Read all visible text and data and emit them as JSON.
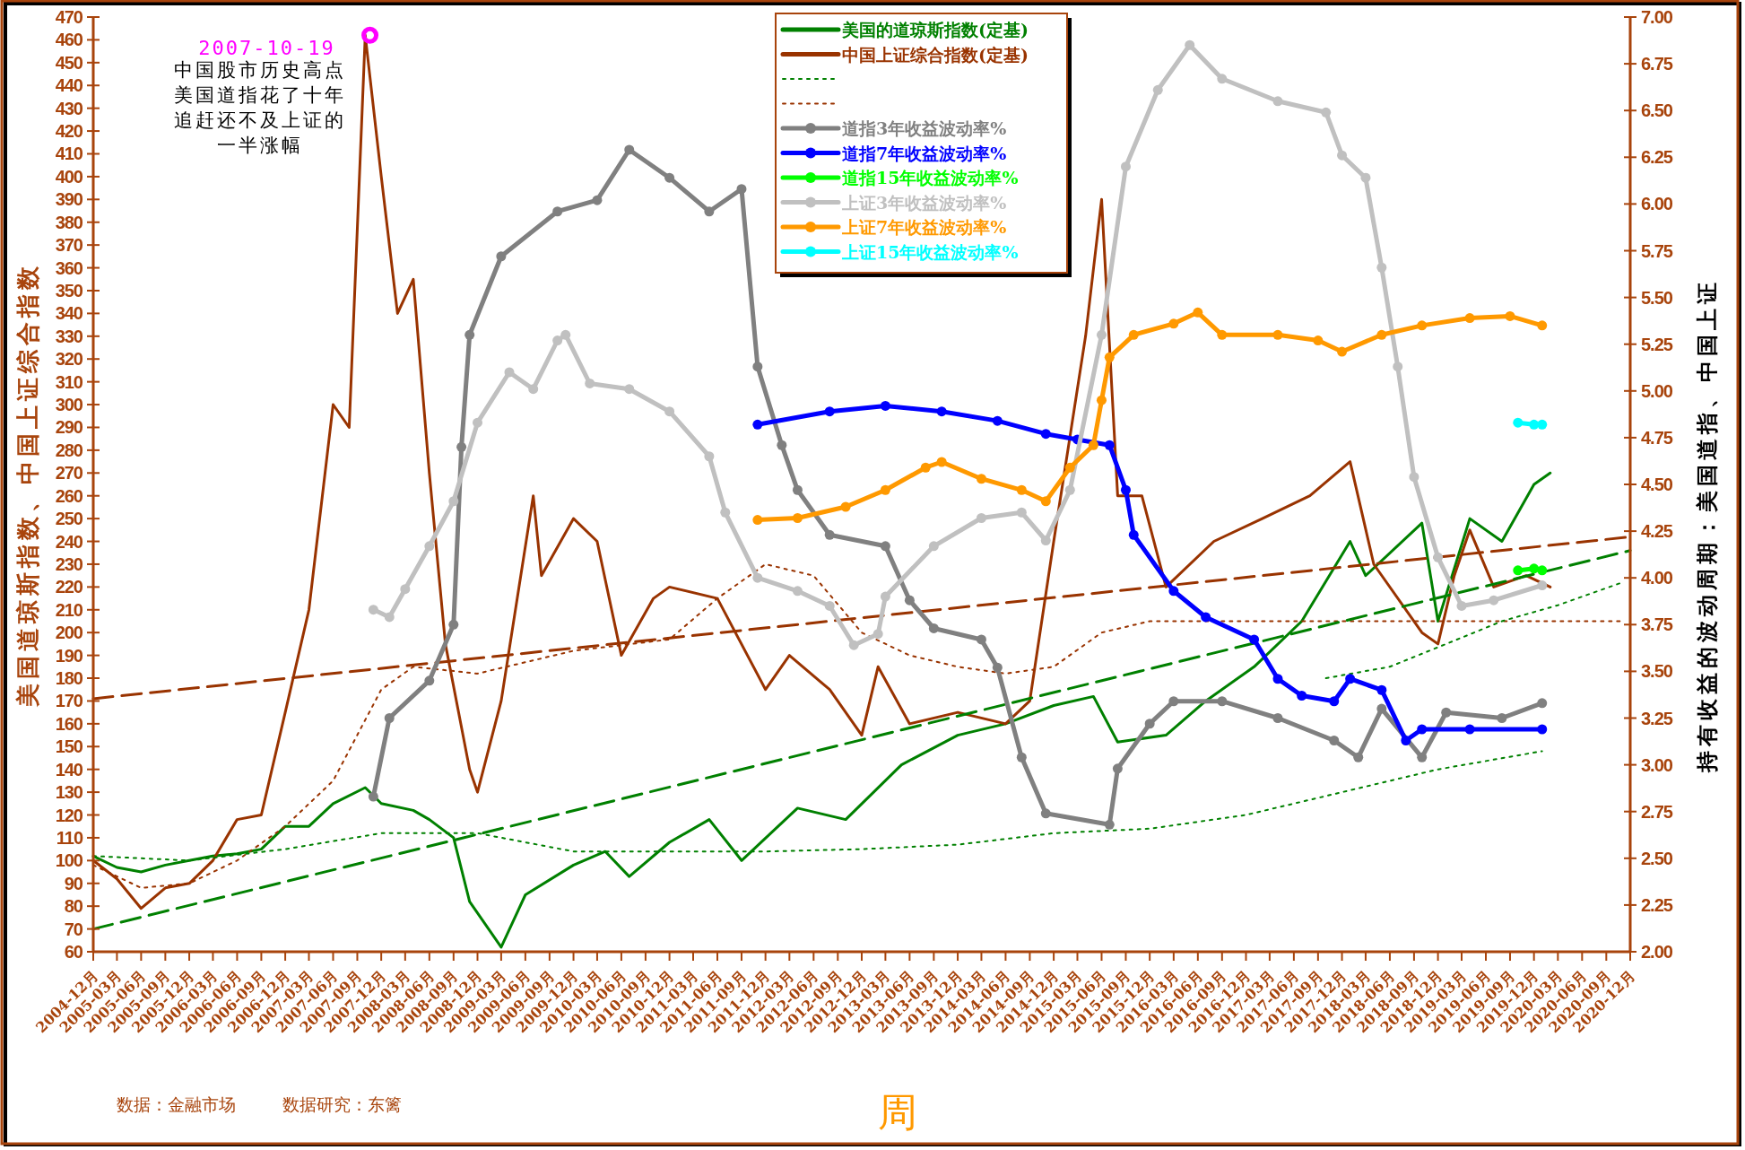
{
  "chart_data": {
    "type": "line",
    "xlabel": "周",
    "ylabel": "美国道琼斯指数、中国上证综合指数",
    "y2label": "持有收益的波动周期：美国道指、中国上证",
    "grid": false,
    "legend": "top",
    "marker": "none",
    "line_style": "solid",
    "xlim": [
      "2004-12",
      "2020-12"
    ],
    "xticks": [
      {
        "value": "2004-12",
        "label": "2004-12月"
      },
      {
        "value": "2005-03",
        "label": "2005-03月"
      },
      {
        "value": "2005-06",
        "label": "2005-06月"
      },
      {
        "value": "2005-09",
        "label": "2005-09月"
      },
      {
        "value": "2005-12",
        "label": "2005-12月"
      },
      {
        "value": "2006-03",
        "label": "2006-03月"
      },
      {
        "value": "2006-06",
        "label": "2006-06月"
      },
      {
        "value": "2006-09",
        "label": "2006-09月"
      },
      {
        "value": "2006-12",
        "label": "2006-12月"
      },
      {
        "value": "2007-03",
        "label": "2007-03月"
      },
      {
        "value": "2007-06",
        "label": "2007-06月"
      },
      {
        "value": "2007-09",
        "label": "2007-09月"
      },
      {
        "value": "2007-12",
        "label": "2007-12月"
      },
      {
        "value": "2008-03",
        "label": "2008-03月"
      },
      {
        "value": "2008-06",
        "label": "2008-06月"
      },
      {
        "value": "2008-09",
        "label": "2008-09月"
      },
      {
        "value": "2008-12",
        "label": "2008-12月"
      },
      {
        "value": "2009-03",
        "label": "2009-03月"
      },
      {
        "value": "2009-06",
        "label": "2009-06月"
      },
      {
        "value": "2009-09",
        "label": "2009-09月"
      },
      {
        "value": "2009-12",
        "label": "2009-12月"
      },
      {
        "value": "2010-03",
        "label": "2010-03月"
      },
      {
        "value": "2010-06",
        "label": "2010-06月"
      },
      {
        "value": "2010-09",
        "label": "2010-09月"
      },
      {
        "value": "2010-12",
        "label": "2010-12月"
      },
      {
        "value": "2011-03",
        "label": "2011-03月"
      },
      {
        "value": "2011-06",
        "label": "2011-06月"
      },
      {
        "value": "2011-09",
        "label": "2011-09月"
      },
      {
        "value": "2011-12",
        "label": "2011-12月"
      },
      {
        "value": "2012-03",
        "label": "2012-03月"
      },
      {
        "value": "2012-06",
        "label": "2012-06月"
      },
      {
        "value": "2012-09",
        "label": "2012-09月"
      },
      {
        "value": "2012-12",
        "label": "2012-12月"
      },
      {
        "value": "2013-03",
        "label": "2013-03月"
      },
      {
        "value": "2013-06",
        "label": "2013-06月"
      },
      {
        "value": "2013-09",
        "label": "2013-09月"
      },
      {
        "value": "2013-12",
        "label": "2013-12月"
      },
      {
        "value": "2014-03",
        "label": "2014-03月"
      },
      {
        "value": "2014-06",
        "label": "2014-06月"
      },
      {
        "value": "2014-09",
        "label": "2014-09月"
      },
      {
        "value": "2014-12",
        "label": "2014-12月"
      },
      {
        "value": "2015-03",
        "label": "2015-03月"
      },
      {
        "value": "2015-06",
        "label": "2015-06月"
      },
      {
        "value": "2015-09",
        "label": "2015-09月"
      },
      {
        "value": "2015-12",
        "label": "2015-12月"
      },
      {
        "value": "2016-03",
        "label": "2016-03月"
      },
      {
        "value": "2016-06",
        "label": "2016-06月"
      },
      {
        "value": "2016-09",
        "label": "2016-09月"
      },
      {
        "value": "2016-12",
        "label": "2016-12月"
      },
      {
        "value": "2017-03",
        "label": "2017-03月"
      },
      {
        "value": "2017-06",
        "label": "2017-06月"
      },
      {
        "value": "2017-09",
        "label": "2017-09月"
      },
      {
        "value": "2017-12",
        "label": "2017-12月"
      },
      {
        "value": "2018-03",
        "label": "2018-03月"
      },
      {
        "value": "2018-06",
        "label": "2018-06月"
      },
      {
        "value": "2018-09",
        "label": "2018-09月"
      },
      {
        "value": "2018-12",
        "label": "2018-12月"
      },
      {
        "value": "2019-03",
        "label": "2019-03月"
      },
      {
        "value": "2019-06",
        "label": "2019-06月"
      },
      {
        "value": "2019-09",
        "label": "2019-09月"
      },
      {
        "value": "2019-12",
        "label": "2019-12月"
      },
      {
        "value": "2020-03",
        "label": "2020-03月"
      },
      {
        "value": "2020-06",
        "label": "2020-06月"
      },
      {
        "value": "2020-09",
        "label": "2020-09月"
      },
      {
        "value": "2020-12",
        "label": "2020-12月"
      }
    ],
    "ylim": [
      60,
      470
    ],
    "yticks": [
      60,
      70,
      80,
      90,
      100,
      110,
      120,
      130,
      140,
      150,
      160,
      170,
      180,
      190,
      200,
      210,
      220,
      230,
      240,
      250,
      260,
      270,
      280,
      290,
      300,
      310,
      320,
      330,
      340,
      350,
      360,
      370,
      380,
      390,
      400,
      410,
      420,
      430,
      440,
      450,
      460,
      470
    ],
    "y2lim": [
      2,
      7
    ],
    "y2ticks": [
      {
        "value": 2,
        "label": "2.00"
      },
      {
        "value": 2.25,
        "label": "2.25"
      },
      {
        "value": 2.5,
        "label": "2.50"
      },
      {
        "value": 2.75,
        "label": "2.75"
      },
      {
        "value": 3,
        "label": "3.00"
      },
      {
        "value": 3.25,
        "label": "3.25"
      },
      {
        "value": 3.5,
        "label": "3.50"
      },
      {
        "value": 3.75,
        "label": "3.75"
      },
      {
        "value": 4,
        "label": "4.00"
      },
      {
        "value": 4.25,
        "label": "4.25"
      },
      {
        "value": 4.5,
        "label": "4.50"
      },
      {
        "value": 4.75,
        "label": "4.75"
      },
      {
        "value": 5,
        "label": "5.00"
      },
      {
        "value": 5.25,
        "label": "5.25"
      },
      {
        "value": 5.5,
        "label": "5.50"
      },
      {
        "value": 5.75,
        "label": "5.75"
      },
      {
        "value": 6,
        "label": "6.00"
      },
      {
        "value": 6.25,
        "label": "6.25"
      },
      {
        "value": 6.5,
        "label": "6.50"
      },
      {
        "value": 6.75,
        "label": "6.75"
      },
      {
        "value": 7,
        "label": "7.00"
      }
    ],
    "annotations": [
      {
        "text": "2007-10-19",
        "x": "2007-10-19",
        "y": 462
      },
      "中国股市历史高点美国道指花了十年追赶还不及上证的一半涨幅",
      "数据：金融市场",
      "数据研究：东篱"
    ],
    "series": [
      {
        "name": "美国的道琼斯指数(定基)",
        "color": "#008000",
        "x": [
          "2004-12",
          "2005-03",
          "2005-06",
          "2005-09",
          "2005-12",
          "2006-03",
          "2006-06",
          "2006-09",
          "2006-12",
          "2007-03",
          "2007-06",
          "2007-10",
          "2007-12",
          "2008-04",
          "2008-06",
          "2008-09",
          "2008-11",
          "2009-03",
          "2009-06",
          "2009-12",
          "2010-04",
          "2010-07",
          "2010-12",
          "2011-05",
          "2011-09",
          "2012-04",
          "2012-10",
          "2013-05",
          "2013-12",
          "2014-06",
          "2014-12",
          "2015-05",
          "2015-08",
          "2016-02",
          "2016-07",
          "2017-01",
          "2017-07",
          "2018-01",
          "2018-03",
          "2018-10",
          "2018-12",
          "2019-04",
          "2019-08",
          "2019-12",
          "2020-02"
        ],
        "values": [
          102,
          97,
          95,
          98,
          100,
          102,
          103,
          105,
          115,
          115,
          125,
          132,
          125,
          122,
          118,
          110,
          82,
          62,
          85,
          98,
          104,
          93,
          108,
          118,
          100,
          123,
          118,
          142,
          155,
          160,
          168,
          172,
          152,
          155,
          170,
          185,
          205,
          240,
          225,
          248,
          205,
          250,
          240,
          265,
          270
        ]
      },
      {
        "name": "中国上证综合指数(定基)",
        "color": "#993300",
        "x": [
          "2004-12",
          "2005-03",
          "2005-06",
          "2005-09",
          "2005-12",
          "2006-03",
          "2006-06",
          "2006-09",
          "2006-12",
          "2007-03",
          "2007-06",
          "2007-08",
          "2007-10",
          "2007-12",
          "2008-02",
          "2008-04",
          "2008-06",
          "2008-08",
          "2008-11",
          "2008-12",
          "2009-03",
          "2009-07",
          "2009-08",
          "2009-12",
          "2010-03",
          "2010-06",
          "2010-10",
          "2010-12",
          "2011-06",
          "2011-12",
          "2012-03",
          "2012-08",
          "2012-12",
          "2013-02",
          "2013-06",
          "2013-12",
          "2014-06",
          "2014-09",
          "2014-12",
          "2015-04",
          "2015-06",
          "2015-08",
          "2015-11",
          "2016-02",
          "2016-08",
          "2017-02",
          "2017-08",
          "2018-01",
          "2018-04",
          "2018-10",
          "2018-12",
          "2019-02",
          "2019-04",
          "2019-07",
          "2019-11",
          "2020-02"
        ],
        "values": [
          100,
          92,
          79,
          88,
          90,
          100,
          118,
          120,
          165,
          210,
          300,
          290,
          462,
          400,
          340,
          355,
          270,
          195,
          140,
          130,
          170,
          260,
          225,
          250,
          240,
          190,
          215,
          220,
          215,
          175,
          190,
          175,
          155,
          185,
          160,
          165,
          160,
          170,
          240,
          330,
          390,
          260,
          260,
          220,
          240,
          250,
          260,
          275,
          230,
          200,
          195,
          225,
          245,
          220,
          225,
          220
        ]
      },
      {
        "color": "#008000",
        "line_style": "dotted",
        "x": [
          "2004-12",
          "2005-12",
          "2006-12",
          "2007-12",
          "2008-12",
          "2009-06",
          "2009-12",
          "2010-12",
          "2011-12",
          "2012-12",
          "2013-12",
          "2014-12",
          "2015-12",
          "2016-12",
          "2017-12",
          "2018-12",
          "2020-01"
        ],
        "values": [
          102,
          100,
          105,
          112,
          112,
          108,
          104,
          104,
          104,
          105,
          107,
          112,
          114,
          120,
          130,
          140,
          148
        ]
      },
      {
        "color": "#993300",
        "line_style": "dotted",
        "x": [
          "2004-12",
          "2005-06",
          "2005-12",
          "2006-06",
          "2006-12",
          "2007-06",
          "2007-12",
          "2008-04",
          "2008-12",
          "2009-12",
          "2010-12",
          "2011-06",
          "2011-12",
          "2012-06",
          "2012-12",
          "2013-06",
          "2013-12",
          "2014-06",
          "2014-12",
          "2015-06",
          "2015-12",
          "2017-06",
          "2019-02",
          "2020-11"
        ],
        "values": [
          98,
          88,
          90,
          100,
          115,
          135,
          175,
          185,
          182,
          192,
          197,
          215,
          230,
          225,
          200,
          190,
          185,
          182,
          185,
          200,
          205,
          205,
          205,
          205
        ]
      },
      {
        "color": "#008000",
        "line_style": "dotted",
        "x": [
          "2017-10",
          "2018-06",
          "2019-01",
          "2019-08",
          "2020-03",
          "2020-11"
        ],
        "values": [
          180,
          185,
          195,
          205,
          212,
          222
        ]
      },
      {
        "color": "#008000",
        "line_style": "dashed",
        "x": [
          "2004-12",
          "2020-12"
        ],
        "values": [
          70,
          236
        ]
      },
      {
        "color": "#993300",
        "line_style": "dashed",
        "x": [
          "2004-12",
          "2020-12"
        ],
        "values": [
          171,
          242
        ]
      },
      {
        "name": "道指3年收益波动率%",
        "color": "#808080",
        "axis": "y2",
        "marker": "circle",
        "x": [
          "2007-11",
          "2008-01",
          "2008-06",
          "2008-09",
          "2008-10",
          "2008-11",
          "2009-03",
          "2009-10",
          "2010-03",
          "2010-07",
          "2010-12",
          "2011-05",
          "2011-09",
          "2011-11",
          "2012-02",
          "2012-04",
          "2012-08",
          "2013-03",
          "2013-06",
          "2013-09",
          "2014-03",
          "2014-05",
          "2014-08",
          "2014-11",
          "2015-07",
          "2015-08",
          "2015-12",
          "2016-03",
          "2016-09",
          "2017-04",
          "2017-11",
          "2018-02",
          "2018-05",
          "2018-10",
          "2019-01",
          "2019-08",
          "2020-01"
        ],
        "values": [
          2.83,
          3.25,
          3.45,
          3.75,
          4.7,
          5.3,
          5.72,
          5.96,
          6.02,
          6.29,
          6.14,
          5.96,
          6.08,
          5.13,
          4.71,
          4.47,
          4.23,
          4.17,
          3.88,
          3.73,
          3.67,
          3.52,
          3.04,
          2.74,
          2.68,
          2.98,
          3.22,
          3.34,
          3.34,
          3.25,
          3.13,
          3.04,
          3.3,
          3.04,
          3.28,
          3.25,
          3.33
        ]
      },
      {
        "name": "道指7年收益波动率%",
        "color": "#0000ff",
        "axis": "y2",
        "marker": "circle",
        "x": [
          "2011-11",
          "2012-08",
          "2013-03",
          "2013-10",
          "2014-05",
          "2014-11",
          "2015-03",
          "2015-07",
          "2015-09",
          "2015-10",
          "2016-03",
          "2016-07",
          "2017-01",
          "2017-04",
          "2017-07",
          "2017-11",
          "2018-01",
          "2018-05",
          "2018-08",
          "2018-10",
          "2019-04",
          "2020-01"
        ],
        "values": [
          4.82,
          4.89,
          4.92,
          4.89,
          4.84,
          4.77,
          4.74,
          4.71,
          4.47,
          4.23,
          3.93,
          3.79,
          3.67,
          3.46,
          3.37,
          3.34,
          3.46,
          3.4,
          3.13,
          3.19,
          3.19,
          3.19
        ]
      },
      {
        "name": "道指15年收益波动率%",
        "color": "#00ff00",
        "axis": "y2",
        "marker": "circle",
        "x": [
          "2019-10",
          "2019-12",
          "2020-01"
        ],
        "values": [
          4.04,
          4.05,
          4.04
        ]
      },
      {
        "name": "上证3年收益波动率%",
        "color": "#c0c0c0",
        "axis": "y2",
        "marker": "circle",
        "x": [
          "2007-11",
          "2008-01",
          "2008-03",
          "2008-06",
          "2008-09",
          "2008-12",
          "2009-04",
          "2009-07",
          "2009-10",
          "2009-11",
          "2010-02",
          "2010-07",
          "2010-12",
          "2011-05",
          "2011-07",
          "2011-11",
          "2012-04",
          "2012-08",
          "2012-11",
          "2013-02",
          "2013-03",
          "2013-09",
          "2014-03",
          "2014-08",
          "2014-11",
          "2015-02",
          "2015-06",
          "2015-09",
          "2016-01",
          "2016-05",
          "2016-09",
          "2017-04",
          "2017-10",
          "2017-12",
          "2018-03",
          "2018-05",
          "2018-07",
          "2018-09",
          "2018-12",
          "2019-03",
          "2019-07",
          "2020-01"
        ],
        "values": [
          3.83,
          3.79,
          3.94,
          4.17,
          4.41,
          4.83,
          5.1,
          5.01,
          5.27,
          5.3,
          5.04,
          5.01,
          4.89,
          4.65,
          4.35,
          4.0,
          3.93,
          3.85,
          3.64,
          3.7,
          3.9,
          4.17,
          4.32,
          4.35,
          4.2,
          4.47,
          5.3,
          6.2,
          6.61,
          6.85,
          6.67,
          6.55,
          6.49,
          6.26,
          6.14,
          5.66,
          5.13,
          4.54,
          4.11,
          3.85,
          3.88,
          3.96
        ]
      },
      {
        "name": "上证7年收益波动率%",
        "color": "#ff9900",
        "axis": "y2",
        "marker": "circle",
        "x": [
          "2011-11",
          "2012-04",
          "2012-10",
          "2013-03",
          "2013-08",
          "2013-10",
          "2014-03",
          "2014-08",
          "2014-11",
          "2015-02",
          "2015-05",
          "2015-06",
          "2015-07",
          "2015-10",
          "2016-03",
          "2016-06",
          "2016-09",
          "2017-04",
          "2017-09",
          "2017-12",
          "2018-05",
          "2018-10",
          "2019-04",
          "2019-09",
          "2020-01"
        ],
        "values": [
          4.31,
          4.32,
          4.38,
          4.47,
          4.59,
          4.62,
          4.53,
          4.47,
          4.41,
          4.59,
          4.71,
          4.95,
          5.18,
          5.3,
          5.36,
          5.42,
          5.3,
          5.3,
          5.27,
          5.21,
          5.3,
          5.35,
          5.39,
          5.4,
          5.35
        ]
      },
      {
        "name": "上证15年收益波动率%",
        "color": "#00ffff",
        "axis": "y2",
        "marker": "circle",
        "x": [
          "2019-10",
          "2019-12",
          "2020-01"
        ],
        "values": [
          4.83,
          4.82,
          4.82
        ]
      }
    ]
  }
}
